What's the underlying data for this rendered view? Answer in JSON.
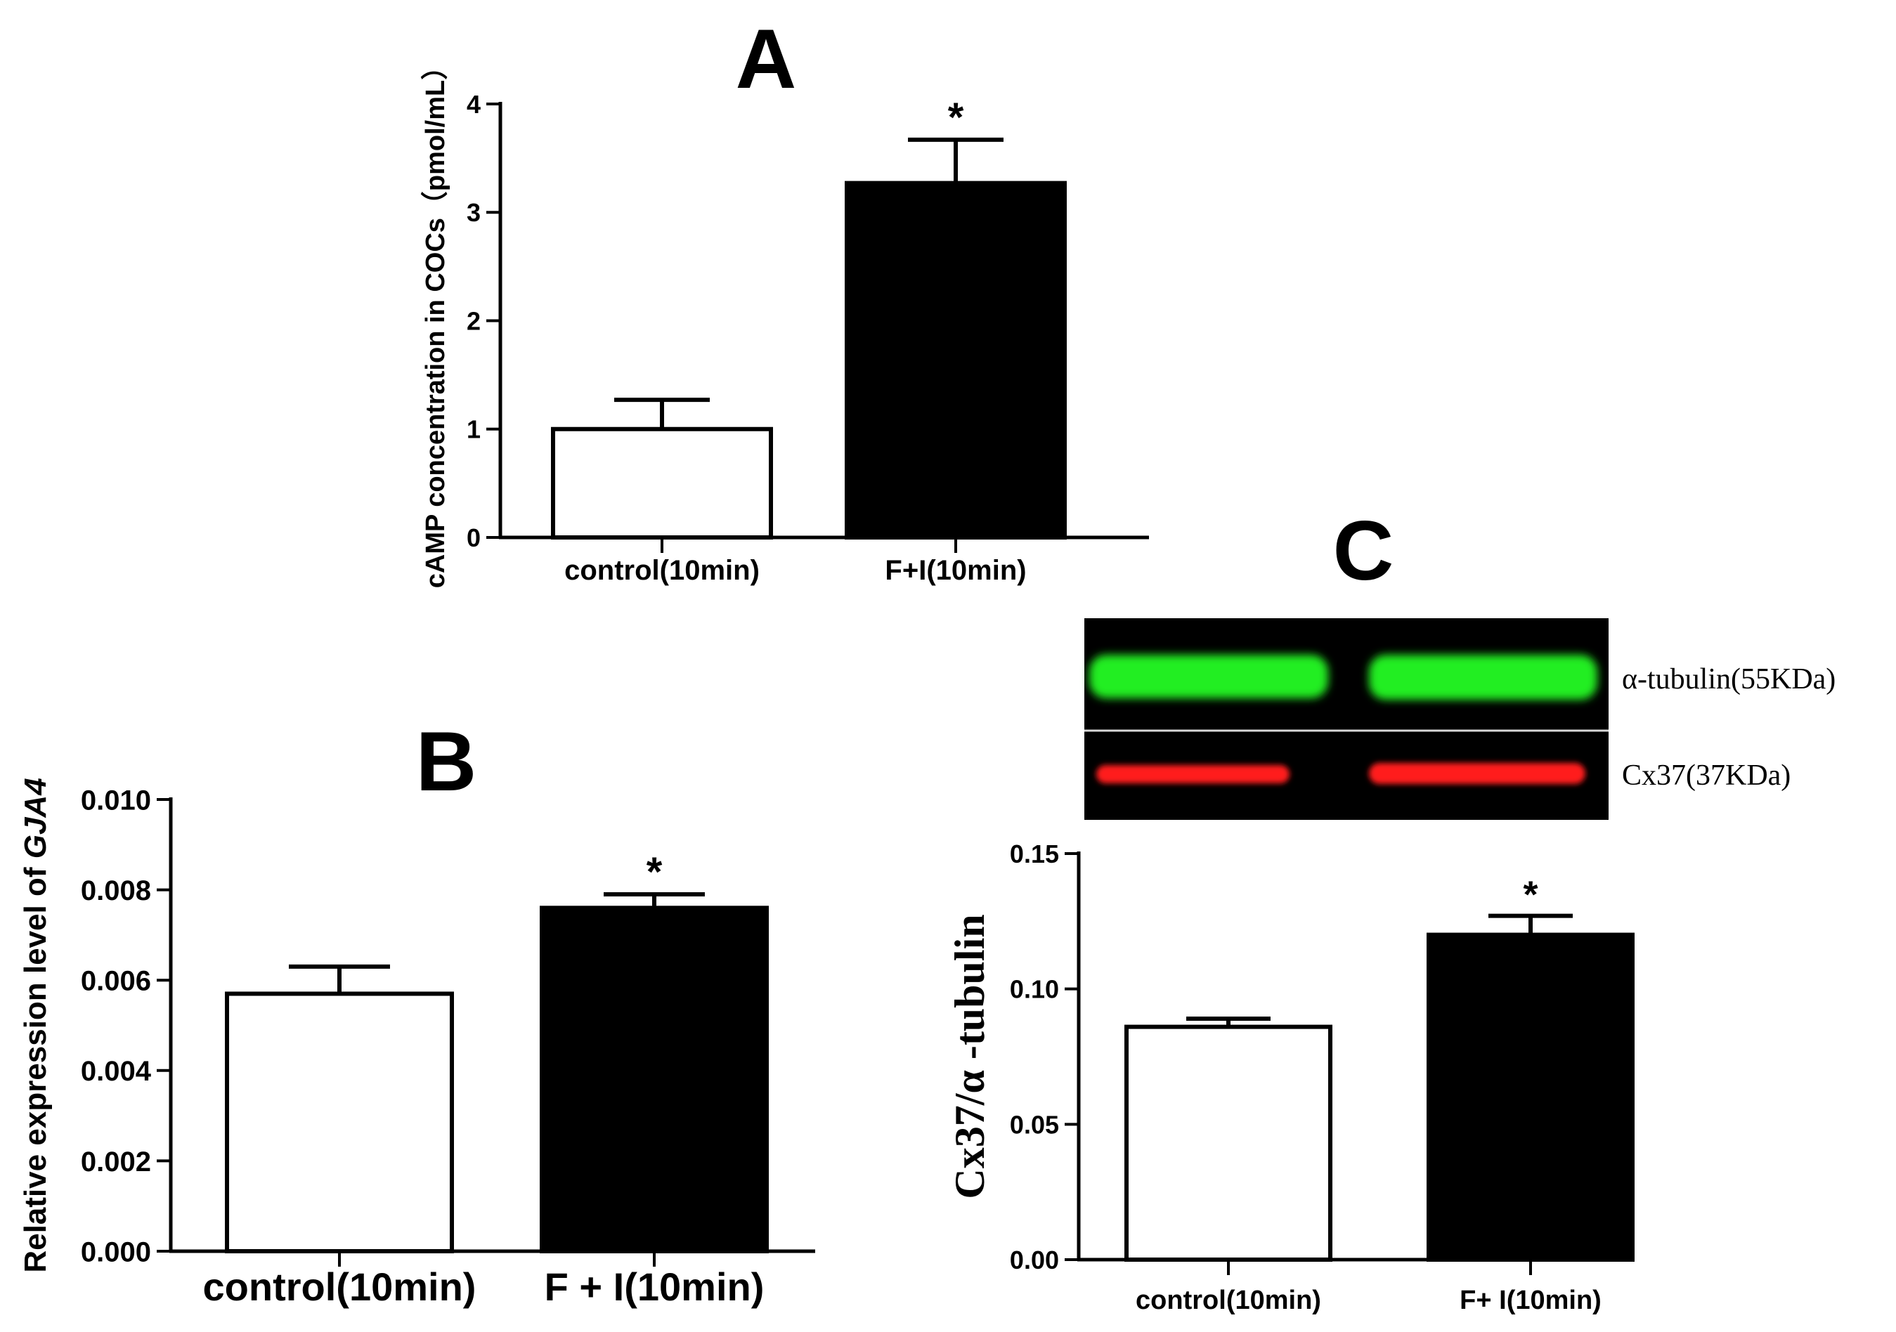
{
  "chart_data": [
    {
      "panel": "A",
      "type": "bar",
      "ylabel": "cAMP concentration in COCs（pmol/mL）",
      "ylim": [
        0,
        4
      ],
      "yticks": [
        "0",
        "1",
        "2",
        "3",
        "4"
      ],
      "categories": [
        "control(10min)",
        "F+I(10min)"
      ],
      "values": [
        1.0,
        3.27
      ],
      "errors": [
        0.27,
        0.4
      ],
      "fill": [
        "#ffffff",
        "#000000"
      ],
      "annotations": [
        "",
        "*"
      ]
    },
    {
      "panel": "B",
      "type": "bar",
      "ylabel": "Relative expression level of ",
      "ylabel_italic": "GJA4",
      "ylim": [
        0,
        0.01
      ],
      "yticks": [
        "0.000",
        "0.002",
        "0.004",
        "0.006",
        "0.008",
        "0.010"
      ],
      "categories": [
        "control(10min)",
        "F + I(10min)"
      ],
      "values": [
        0.0057,
        0.0076
      ],
      "errors": [
        0.0006,
        0.0003
      ],
      "fill": [
        "#ffffff",
        "#000000"
      ],
      "annotations": [
        "",
        "*"
      ]
    },
    {
      "panel": "C",
      "type": "bar",
      "ylabel": "Cx37/α -tubulin",
      "ylim": [
        0,
        0.15
      ],
      "yticks": [
        "0.00",
        "0.05",
        "0.10",
        "0.15"
      ],
      "categories": [
        "control(10min)",
        "F+ I(10min)"
      ],
      "values": [
        0.086,
        0.12
      ],
      "errors": [
        0.003,
        0.007
      ],
      "fill": [
        "#ffffff",
        "#000000"
      ],
      "annotations": [
        "",
        "*"
      ]
    }
  ],
  "blot": {
    "bands": [
      {
        "label": "α-tubulin(55KDa)",
        "color": "#22ee22"
      },
      {
        "label": "Cx37(37KDa)",
        "color": "#ff1a1a"
      }
    ]
  }
}
